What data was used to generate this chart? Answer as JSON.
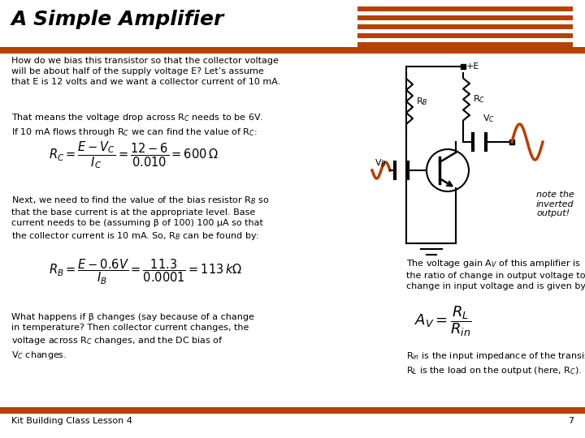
{
  "title": "A Simple Amplifier",
  "title_fontsize": 18,
  "title_color": "#000000",
  "bar_color": "#B84000",
  "bg_color": "#FFFFFF",
  "footer_text": "Kit Building Class Lesson 4",
  "footer_number": "7"
}
